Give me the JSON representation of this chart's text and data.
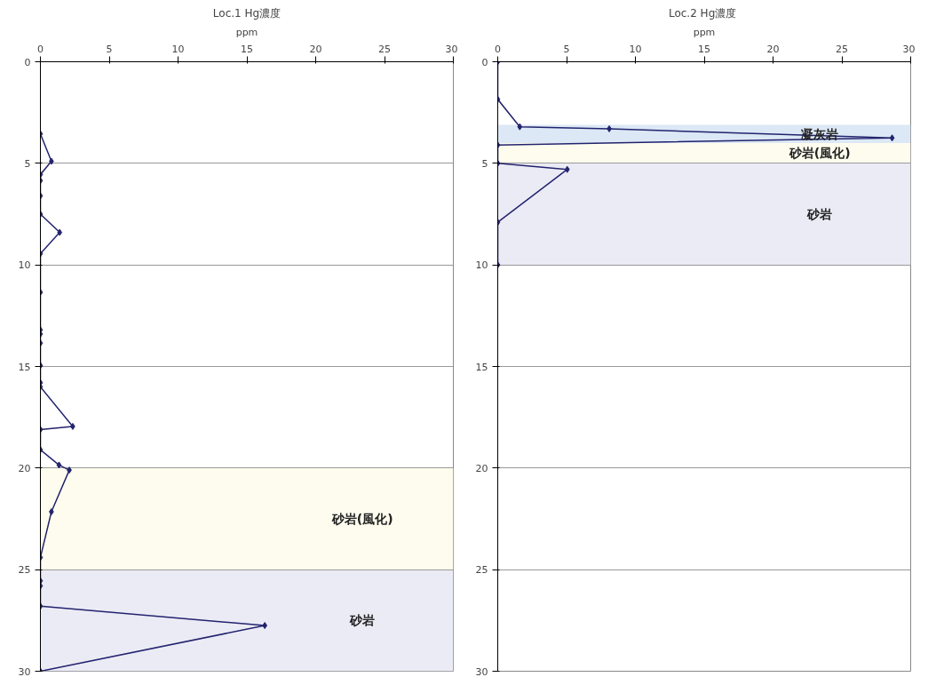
{
  "chart_data": [
    {
      "type": "line",
      "title": "Loc.1 Hg濃度",
      "xlabel": "ppm",
      "xlim": [
        0,
        30
      ],
      "xticks": [
        0,
        5,
        10,
        15,
        20,
        25,
        30
      ],
      "ylim": [
        30,
        0
      ],
      "yticks": [
        0,
        5,
        10,
        15,
        20,
        25,
        30
      ],
      "grid": "y",
      "marker": "diamond",
      "line_style": "solid",
      "series": [
        {
          "color": "#23236e",
          "x": [
            0,
            0.8,
            0,
            0,
            0,
            0,
            1.4,
            0,
            0,
            0,
            0,
            0,
            0,
            0,
            0,
            2.35,
            0,
            0,
            1.35,
            2.1,
            0.8,
            0,
            0,
            0,
            0,
            16.3,
            0
          ],
          "values": [
            3.55,
            4.9,
            5.55,
            5.85,
            6.6,
            7.5,
            8.4,
            9.45,
            11.35,
            13.2,
            13.4,
            13.85,
            14.95,
            15.8,
            16.0,
            17.95,
            18.1,
            19.1,
            19.85,
            20.1,
            22.15,
            24.4,
            25.55,
            25.8,
            26.8,
            27.75,
            30
          ]
        }
      ],
      "bands": [
        {
          "axis": "y",
          "from": 20,
          "to": 25,
          "label": "砂岩(風化)",
          "color": "#fdfcee"
        },
        {
          "axis": "y",
          "from": 25,
          "to": 30,
          "label": "砂岩",
          "color": "#ebebf6"
        }
      ]
    },
    {
      "type": "line",
      "title": "Loc.2  Hg濃度",
      "xlabel": "ppm",
      "xlim": [
        0,
        30
      ],
      "xticks": [
        0,
        5,
        10,
        15,
        20,
        25,
        30
      ],
      "ylim": [
        30,
        0
      ],
      "yticks": [
        0,
        5,
        10,
        15,
        20,
        25,
        30
      ],
      "grid": "y",
      "marker": "diamond",
      "line_style": "solid",
      "series": [
        {
          "color": "#23236e",
          "x": [
            0,
            0,
            1.6,
            8.1,
            28.65,
            0,
            0,
            5.05,
            0,
            0
          ],
          "values": [
            0,
            1.85,
            3.2,
            3.3,
            3.75,
            4.1,
            5.0,
            5.3,
            7.9,
            10
          ]
        }
      ],
      "bands": [
        {
          "axis": "y",
          "from": 3.1,
          "to": 4.0,
          "label": "凝灰岩",
          "color": "#dce8f5"
        },
        {
          "axis": "y",
          "from": 4.0,
          "to": 5.0,
          "label": "砂岩(風化)",
          "color": "#fdfcee"
        },
        {
          "axis": "y",
          "from": 5.0,
          "to": 10.0,
          "label": "砂岩",
          "color": "#ebebf6"
        }
      ]
    }
  ]
}
